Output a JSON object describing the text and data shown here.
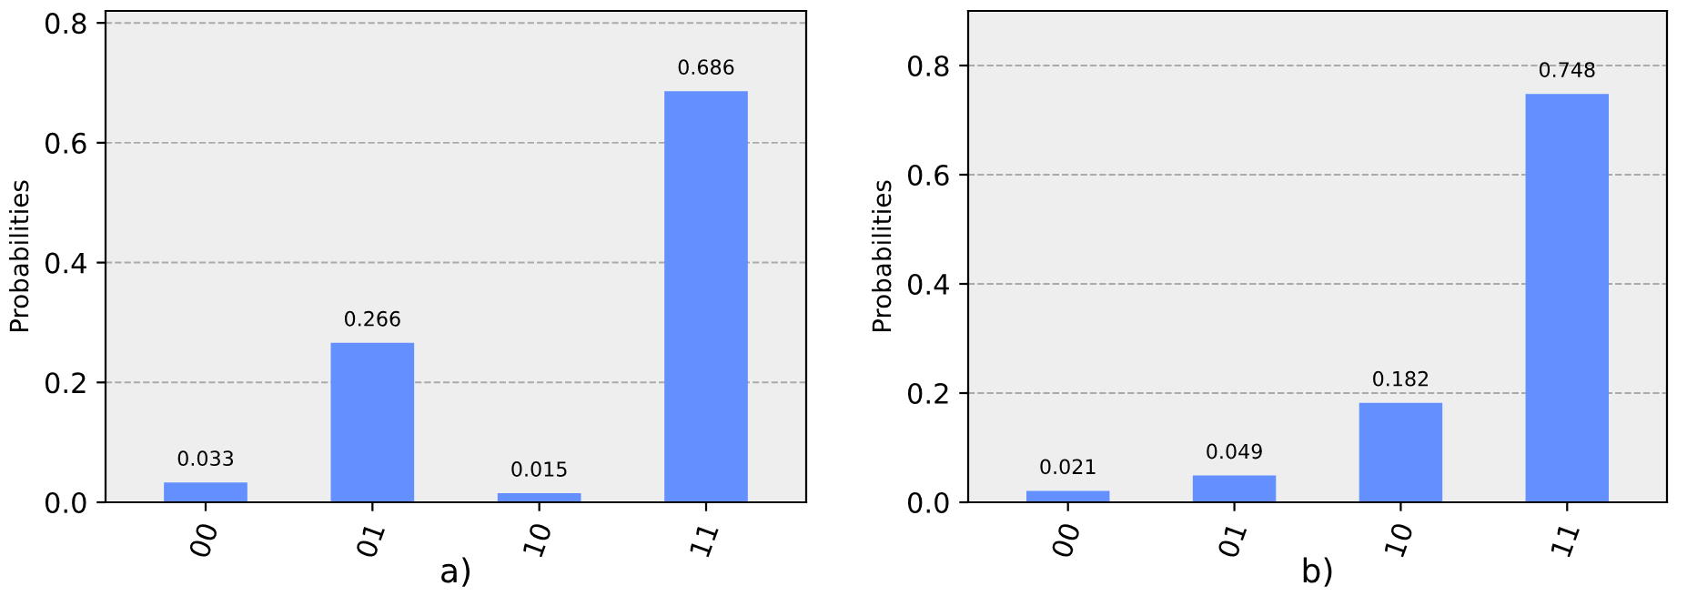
{
  "chart_data": [
    {
      "type": "bar",
      "categories": [
        "00",
        "01",
        "10",
        "11"
      ],
      "values": [
        0.033,
        0.266,
        0.015,
        0.686
      ],
      "color": "#648fff",
      "xlabel": "a)",
      "ylabel": "Probabilities",
      "ylim": [
        0,
        0.82
      ],
      "yticks": [
        {
          "value": 0,
          "label": "0.0"
        },
        0.2,
        0.4,
        0.6,
        0.8
      ],
      "grid": "y",
      "data_labels": true
    },
    {
      "type": "bar",
      "categories": [
        "00",
        "01",
        "10",
        "11"
      ],
      "values": [
        0.021,
        0.049,
        0.182,
        0.748
      ],
      "color": "#648fff",
      "xlabel": "b)",
      "ylabel": "Probabilities",
      "ylim": [
        0,
        0.9
      ],
      "yticks": [
        {
          "value": 0,
          "label": "0.0"
        },
        0.2,
        0.4,
        0.6,
        0.8
      ],
      "grid": "y",
      "data_labels": true
    }
  ]
}
